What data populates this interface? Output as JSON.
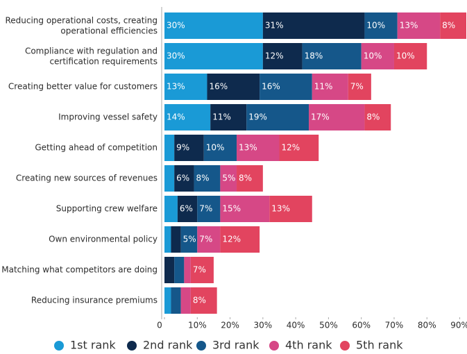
{
  "chart_data": {
    "type": "bar",
    "orientation": "horizontal",
    "stacked": true,
    "categories": [
      "Reducing operational costs, creating\noperational efficiencies",
      "Compliance with regulation and\ncertification requirements",
      "Creating better value for customers",
      "Improving vessel safety",
      "Getting ahead of competition",
      "Creating new sources of revenues",
      "Supporting crew welfare",
      "Own environmental policy",
      "Matching what competitors are doing",
      "Reducing insurance premiums"
    ],
    "series": [
      {
        "name": "1st rank",
        "color": "#1a9ad6",
        "values": [
          30,
          30,
          13,
          14,
          3,
          3,
          4,
          2,
          0,
          2
        ],
        "value_labels": [
          "30%",
          "30%",
          "13%",
          "14%",
          null,
          null,
          null,
          null,
          null,
          null
        ]
      },
      {
        "name": "2nd rank",
        "color": "#0e2a4d",
        "values": [
          31,
          12,
          16,
          11,
          9,
          6,
          6,
          3,
          3,
          0
        ],
        "value_labels": [
          "31%",
          "12%",
          "16%",
          "11%",
          "9%",
          "6%",
          "6%",
          null,
          null,
          null
        ]
      },
      {
        "name": "3rd rank",
        "color": "#15578a",
        "values": [
          10,
          18,
          16,
          19,
          10,
          8,
          7,
          5,
          3,
          3
        ],
        "value_labels": [
          "10%",
          "18%",
          "16%",
          "19%",
          "10%",
          "8%",
          "7%",
          "5%",
          null,
          null
        ]
      },
      {
        "name": "4th rank",
        "color": "#d64886",
        "values": [
          13,
          10,
          11,
          17,
          13,
          5,
          15,
          7,
          2,
          3
        ],
        "value_labels": [
          "13%",
          "10%",
          "11%",
          "17%",
          "13%",
          "5%",
          "15%",
          "7%",
          null,
          null
        ]
      },
      {
        "name": "5th rank",
        "color": "#e2445f",
        "values": [
          8,
          10,
          7,
          8,
          12,
          8,
          13,
          12,
          7,
          8
        ],
        "value_labels": [
          "8%",
          "10%",
          "7%",
          "8%",
          "12%",
          "8%",
          "13%",
          "12%",
          "7%",
          "8%"
        ]
      }
    ],
    "xlim": [
      0,
      92
    ],
    "xticks": [
      0,
      {
        "value": 10,
        "label": "10%"
      },
      {
        "value": 20,
        "label": "20%"
      },
      {
        "value": 30,
        "label": "30%"
      },
      {
        "value": 40,
        "label": "40%"
      },
      {
        "value": 50,
        "label": "50%"
      },
      {
        "value": 60,
        "label": "60%"
      },
      {
        "value": 70,
        "label": "70%"
      },
      {
        "value": 80,
        "label": "80%"
      },
      {
        "value": 90,
        "label": "90%"
      }
    ],
    "legend": "bottom"
  }
}
